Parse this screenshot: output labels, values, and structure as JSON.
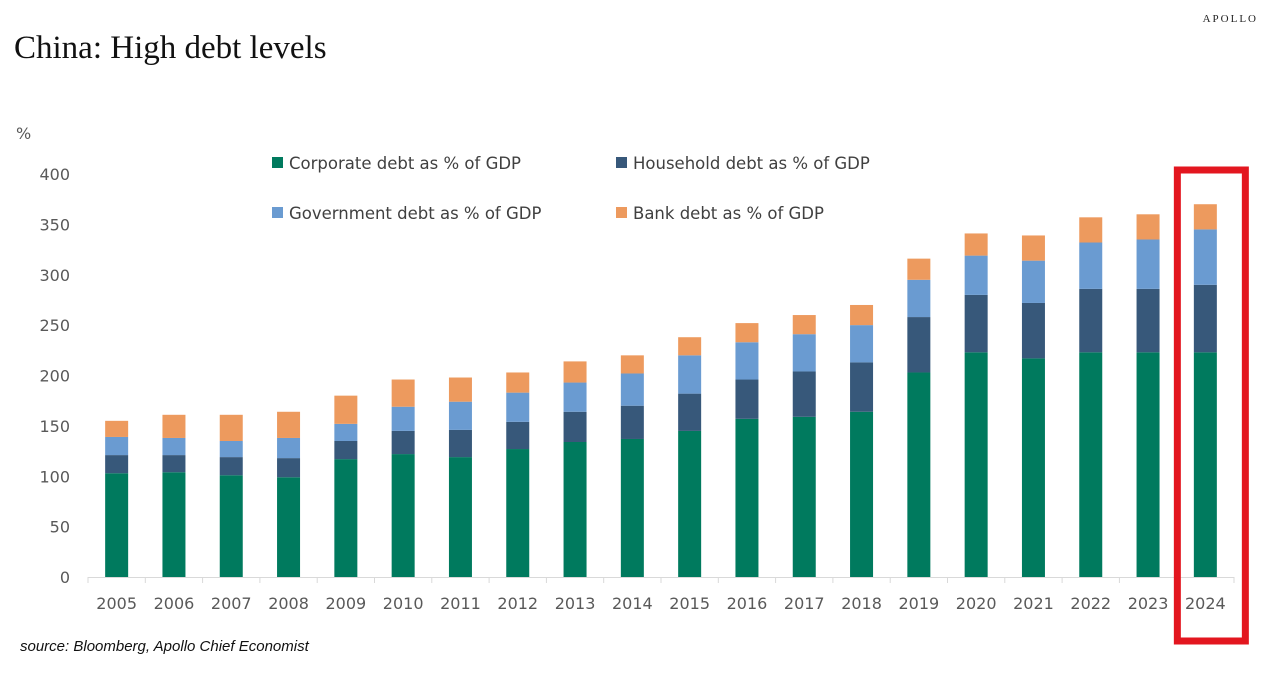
{
  "header": {
    "brand": "APOLLO",
    "title": "China: High debt levels"
  },
  "footer": {
    "source": "source: Bloomberg, Apollo Chief Economist"
  },
  "highlight": {
    "category": "2024",
    "color": "#e3161f"
  },
  "chart_data": {
    "type": "bar",
    "stacked": true,
    "title": "China: High debt levels",
    "xlabel": "",
    "ylabel": "%",
    "ylim": [
      0,
      400
    ],
    "yticks": [
      0,
      50,
      100,
      150,
      200,
      250,
      300,
      350,
      400
    ],
    "grid": false,
    "legend_position": "top-center",
    "categories": [
      "2005",
      "2006",
      "2007",
      "2008",
      "2009",
      "2010",
      "2011",
      "2012",
      "2013",
      "2014",
      "2015",
      "2016",
      "2017",
      "2018",
      "2019",
      "2020",
      "2021",
      "2022",
      "2023",
      "2024"
    ],
    "series": [
      {
        "name": "Corporate debt as % of GDP",
        "color": "#007a5e",
        "values": [
          103,
          104,
          101,
          99,
          117,
          122,
          119,
          127,
          134,
          137,
          145,
          157,
          159,
          164,
          203,
          223,
          217,
          223,
          223,
          223
        ]
      },
      {
        "name": "Household debt as % of GDP",
        "color": "#37587a",
        "values": [
          18,
          17,
          18,
          19,
          18,
          23,
          27,
          27,
          30,
          33,
          37,
          39,
          45,
          49,
          55,
          57,
          55,
          63,
          63,
          67
        ]
      },
      {
        "name": "Government debt as % of GDP",
        "color": "#6a9bd1",
        "values": [
          18,
          17,
          16,
          20,
          17,
          24,
          28,
          29,
          29,
          32,
          38,
          37,
          37,
          37,
          37,
          39,
          42,
          46,
          49,
          55
        ]
      },
      {
        "name": "Bank debt as % of GDP",
        "color": "#ed9a5e",
        "values": [
          16,
          23,
          26,
          26,
          28,
          27,
          24,
          20,
          21,
          18,
          18,
          19,
          19,
          20,
          21,
          22,
          25,
          25,
          25,
          25
        ]
      }
    ]
  }
}
